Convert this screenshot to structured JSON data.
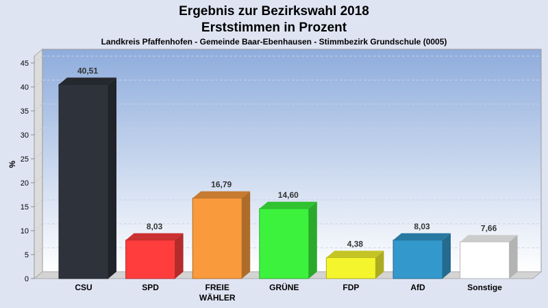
{
  "chart_data": {
    "type": "bar",
    "title": "Ergebnis zur Bezirkswahl 2018",
    "subtitle": "Erststimmen in Prozent",
    "caption": "Landkreis Pfaffenhofen - Gemeinde Baar-Ebenhausen - Stimmbezirk Grundschule (0005)",
    "ylabel": "%",
    "xlabel": "",
    "ylim": [
      0,
      45
    ],
    "yticks": [
      0,
      5,
      10,
      15,
      20,
      25,
      30,
      35,
      40,
      45
    ],
    "grid": true,
    "categories": [
      "CSU",
      "SPD",
      "FREIE WÄHLER",
      "GRÜNE",
      "FDP",
      "AfD",
      "Sonstige"
    ],
    "values": [
      40.51,
      8.03,
      16.79,
      14.6,
      4.38,
      8.03,
      7.66
    ],
    "labels": [
      "40,51",
      "8,03",
      "16,79",
      "14,60",
      "4,38",
      "8,03",
      "7,66"
    ],
    "colors": [
      "#2e323a",
      "#ff3d3d",
      "#f99a3c",
      "#3df23d",
      "#f5f52e",
      "#3399cc",
      "#ffffff"
    ]
  }
}
